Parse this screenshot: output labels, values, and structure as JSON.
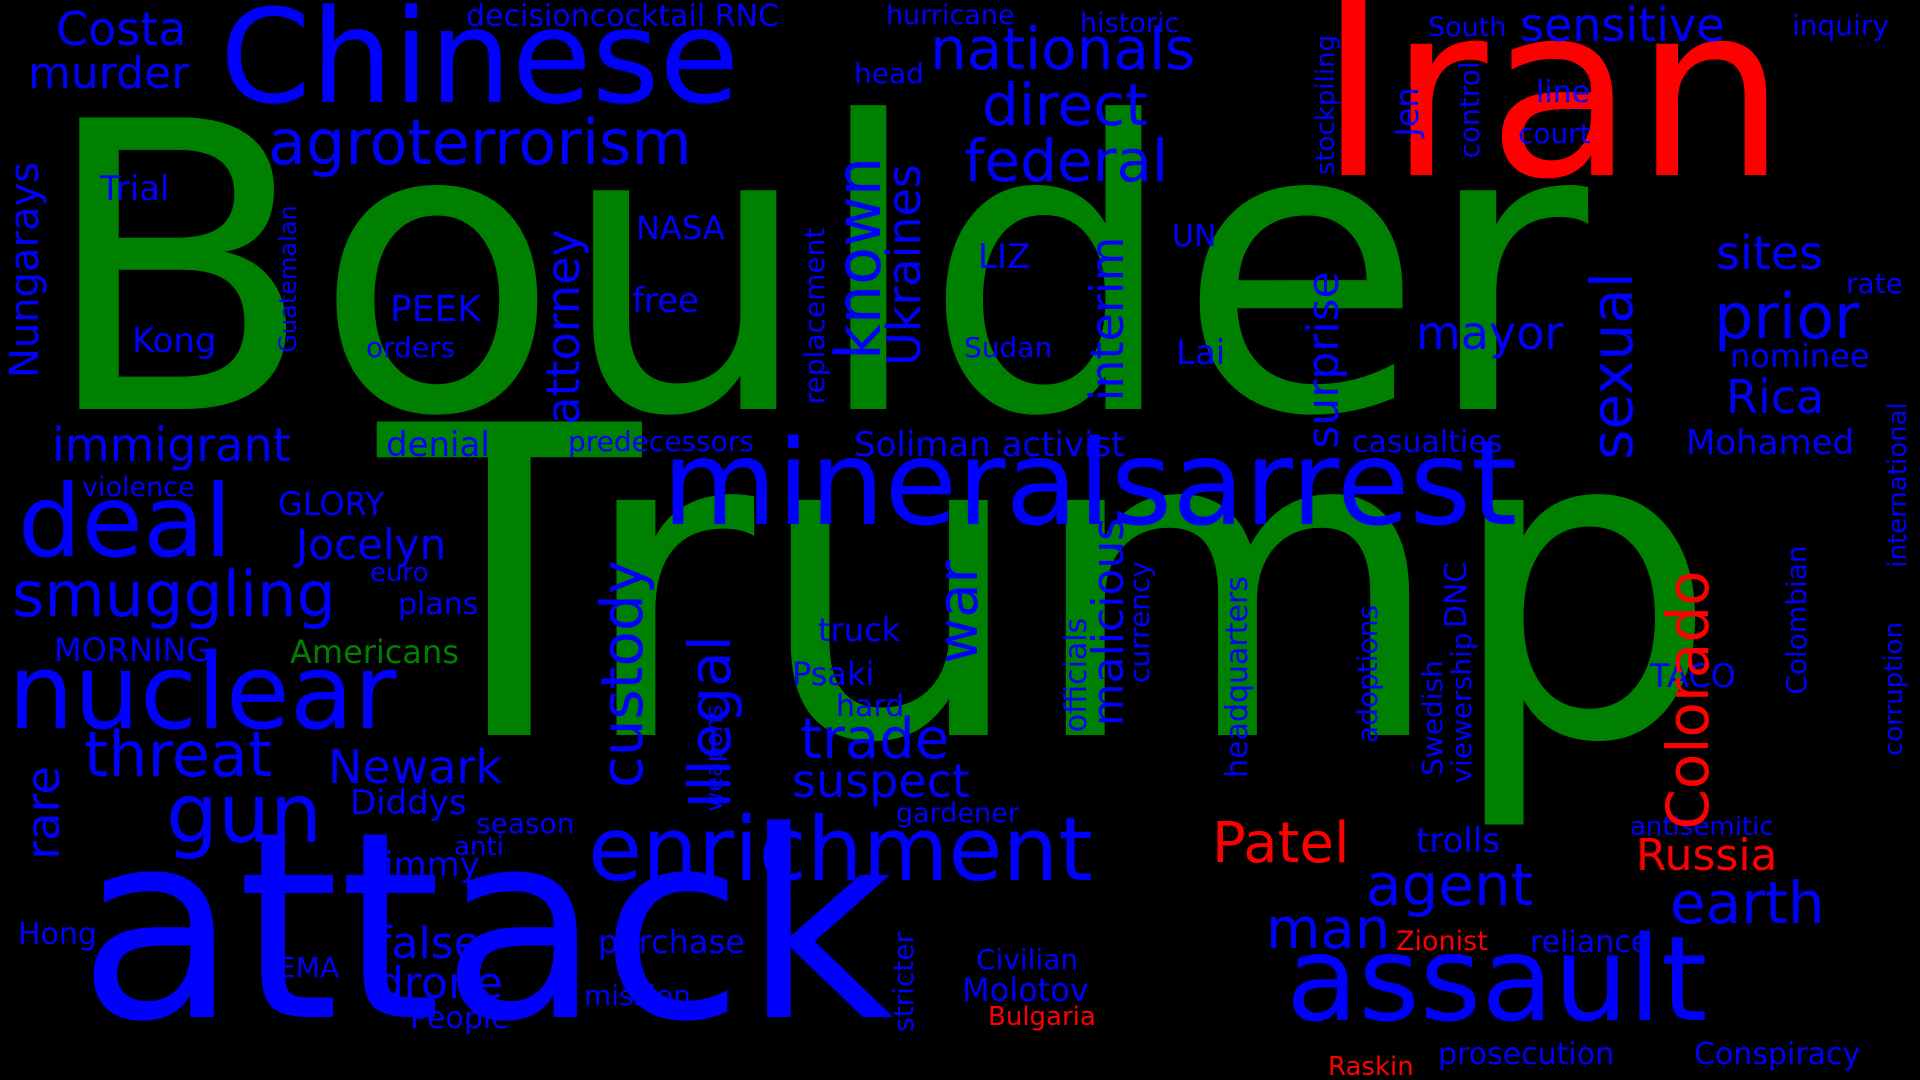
{
  "palette": {
    "background": "#000000",
    "blue": "#0000ff",
    "green": "#008000",
    "red": "#ff0000"
  },
  "words": [
    {
      "text": "Boulder",
      "color": "green"
    },
    {
      "text": "Trump",
      "color": "green"
    },
    {
      "text": "Iran",
      "color": "red"
    },
    {
      "text": "attack",
      "color": "blue"
    },
    {
      "text": "Chinese",
      "color": "blue"
    },
    {
      "text": "mineralsarrest",
      "color": "blue"
    },
    {
      "text": "assault",
      "color": "blue"
    },
    {
      "text": "nuclear",
      "color": "blue"
    },
    {
      "text": "deal",
      "color": "blue"
    },
    {
      "text": "enrichment",
      "color": "blue"
    },
    {
      "text": "agroterrorism",
      "color": "blue"
    },
    {
      "text": "nationals",
      "color": "blue"
    },
    {
      "text": "federal",
      "color": "blue"
    },
    {
      "text": "direct",
      "color": "blue"
    },
    {
      "text": "gun",
      "color": "blue"
    },
    {
      "text": "threat",
      "color": "blue"
    },
    {
      "text": "smuggling",
      "color": "blue"
    },
    {
      "text": "immigrant",
      "color": "blue"
    },
    {
      "text": "Costa",
      "color": "blue"
    },
    {
      "text": "murder",
      "color": "blue"
    },
    {
      "text": "decisioncocktail RNC",
      "color": "blue"
    },
    {
      "text": "hurricane",
      "color": "blue"
    },
    {
      "text": "historic",
      "color": "blue"
    },
    {
      "text": "South",
      "color": "blue"
    },
    {
      "text": "sensitive",
      "color": "blue"
    },
    {
      "text": "inquiry",
      "color": "blue"
    },
    {
      "text": "head",
      "color": "blue"
    },
    {
      "text": "line",
      "color": "blue"
    },
    {
      "text": "court",
      "color": "blue"
    },
    {
      "text": "Trial",
      "color": "blue"
    },
    {
      "text": "NASA",
      "color": "blue"
    },
    {
      "text": "LIZ",
      "color": "blue"
    },
    {
      "text": "UN",
      "color": "blue"
    },
    {
      "text": "free",
      "color": "blue"
    },
    {
      "text": "PEEK",
      "color": "blue"
    },
    {
      "text": "Kong",
      "color": "blue"
    },
    {
      "text": "orders",
      "color": "blue"
    },
    {
      "text": "Sudan",
      "color": "blue"
    },
    {
      "text": "Lai",
      "color": "blue"
    },
    {
      "text": "mayor",
      "color": "blue"
    },
    {
      "text": "sites",
      "color": "blue"
    },
    {
      "text": "prior",
      "color": "blue"
    },
    {
      "text": "rate",
      "color": "blue"
    },
    {
      "text": "nominee",
      "color": "blue"
    },
    {
      "text": "Rica",
      "color": "blue"
    },
    {
      "text": "Mohamed",
      "color": "blue"
    },
    {
      "text": "casualties",
      "color": "blue"
    },
    {
      "text": "denial",
      "color": "blue"
    },
    {
      "text": "predecessors",
      "color": "blue"
    },
    {
      "text": "Soliman activist",
      "color": "blue"
    },
    {
      "text": "violence",
      "color": "blue"
    },
    {
      "text": "GLORY",
      "color": "blue"
    },
    {
      "text": "Jocelyn",
      "color": "blue"
    },
    {
      "text": "euro",
      "color": "blue"
    },
    {
      "text": "plans",
      "color": "blue"
    },
    {
      "text": "MORNING",
      "color": "blue"
    },
    {
      "text": "Americans",
      "color": "green"
    },
    {
      "text": "truck",
      "color": "blue"
    },
    {
      "text": "Psaki",
      "color": "blue"
    },
    {
      "text": "hard",
      "color": "blue"
    },
    {
      "text": "trade",
      "color": "blue"
    },
    {
      "text": "suspect",
      "color": "blue"
    },
    {
      "text": "Newark",
      "color": "blue"
    },
    {
      "text": "Diddys",
      "color": "blue"
    },
    {
      "text": "season",
      "color": "blue"
    },
    {
      "text": "anti",
      "color": "blue"
    },
    {
      "text": "Jimmy",
      "color": "blue"
    },
    {
      "text": "gardener",
      "color": "blue"
    },
    {
      "text": "TACO",
      "color": "blue"
    },
    {
      "text": "Patel",
      "color": "red"
    },
    {
      "text": "trolls",
      "color": "blue"
    },
    {
      "text": "agent",
      "color": "blue"
    },
    {
      "text": "antisemitic",
      "color": "blue"
    },
    {
      "text": "Russia",
      "color": "red"
    },
    {
      "text": "earth",
      "color": "blue"
    },
    {
      "text": "man",
      "color": "blue"
    },
    {
      "text": "Hong",
      "color": "blue"
    },
    {
      "text": "false",
      "color": "blue"
    },
    {
      "text": "purchase",
      "color": "blue"
    },
    {
      "text": "FEMA",
      "color": "blue"
    },
    {
      "text": "drone",
      "color": "blue"
    },
    {
      "text": "Civilian",
      "color": "blue"
    },
    {
      "text": "Molotov",
      "color": "blue"
    },
    {
      "text": "mission",
      "color": "blue"
    },
    {
      "text": "People",
      "color": "blue"
    },
    {
      "text": "Zionist",
      "color": "red"
    },
    {
      "text": "reliance",
      "color": "blue"
    },
    {
      "text": "Bulgaria",
      "color": "red"
    },
    {
      "text": "prosecution",
      "color": "blue"
    },
    {
      "text": "Conspiracy",
      "color": "blue"
    },
    {
      "text": "Raskin",
      "color": "red"
    },
    {
      "text": "Guatemalan",
      "color": "blue"
    },
    {
      "text": "Nungarays",
      "color": "blue"
    },
    {
      "text": "rare",
      "color": "blue"
    },
    {
      "text": "custody",
      "color": "blue"
    },
    {
      "text": "Illegal",
      "color": "blue"
    },
    {
      "text": "attorney",
      "color": "blue"
    },
    {
      "text": "replacement",
      "color": "blue"
    },
    {
      "text": "known",
      "color": "blue"
    },
    {
      "text": "Ukraines",
      "color": "blue"
    },
    {
      "text": "war",
      "color": "blue"
    },
    {
      "text": "interim",
      "color": "blue"
    },
    {
      "text": "malicious",
      "color": "blue"
    },
    {
      "text": "officials",
      "color": "blue"
    },
    {
      "text": "currency",
      "color": "blue"
    },
    {
      "text": "headquarters",
      "color": "blue"
    },
    {
      "text": "stockpiling",
      "color": "blue"
    },
    {
      "text": "surprise",
      "color": "blue"
    },
    {
      "text": "Jen",
      "color": "blue"
    },
    {
      "text": "control",
      "color": "blue"
    },
    {
      "text": "sexual",
      "color": "blue"
    },
    {
      "text": "adoptions",
      "color": "blue"
    },
    {
      "text": "DNC",
      "color": "blue"
    },
    {
      "text": "Swedish",
      "color": "blue"
    },
    {
      "text": "viewership",
      "color": "blue"
    },
    {
      "text": "Colorado",
      "color": "red"
    },
    {
      "text": "Colombian",
      "color": "blue"
    },
    {
      "text": "international",
      "color": "blue"
    },
    {
      "text": "corruption",
      "color": "blue"
    },
    {
      "text": "weapons",
      "color": "blue"
    },
    {
      "text": "stricter",
      "color": "blue"
    }
  ]
}
